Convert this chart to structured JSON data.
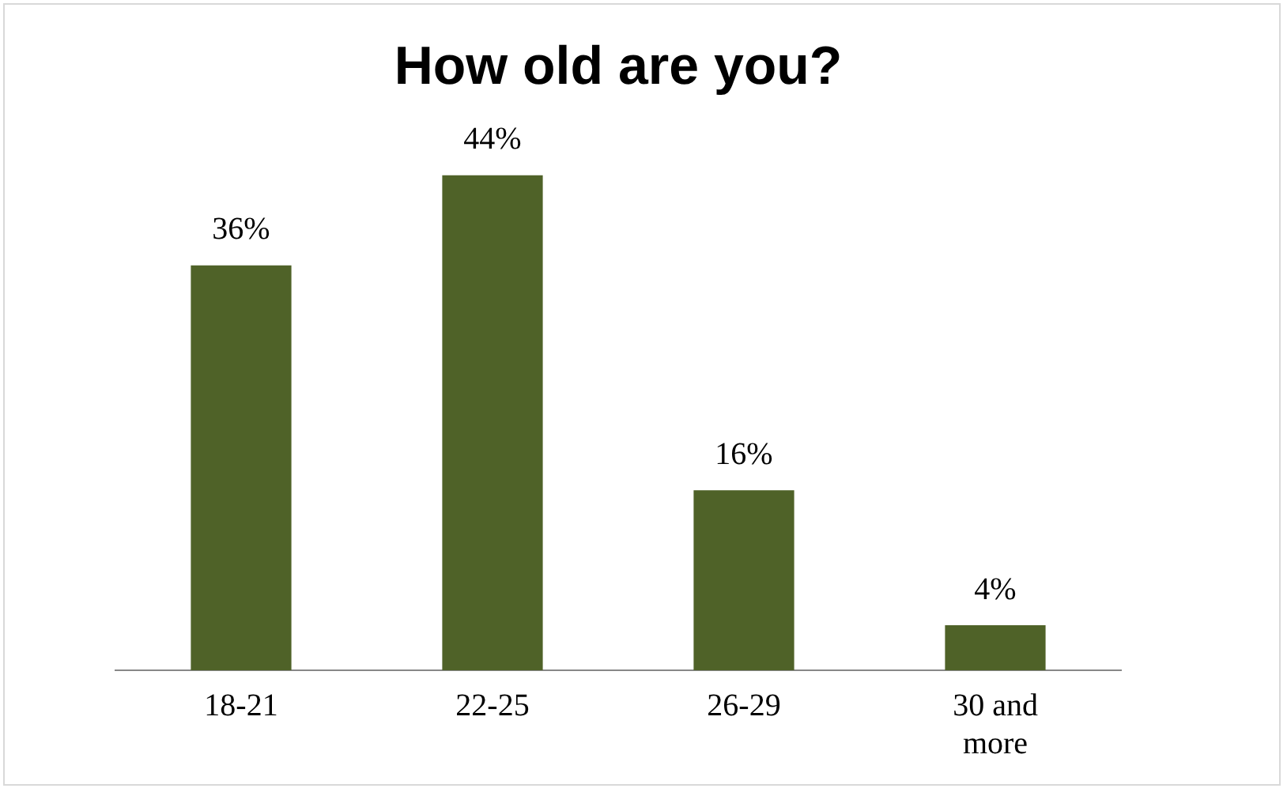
{
  "chart_data": {
    "type": "bar",
    "title": "How old are you?",
    "categories": [
      "18-21",
      "22-25",
      "26-29",
      "30 and more"
    ],
    "values": [
      36,
      44,
      16,
      4
    ],
    "color": "#4f6228",
    "value_labels": [
      "36%",
      "44%",
      "16%",
      "4%"
    ],
    "grid": false,
    "legend": false
  }
}
